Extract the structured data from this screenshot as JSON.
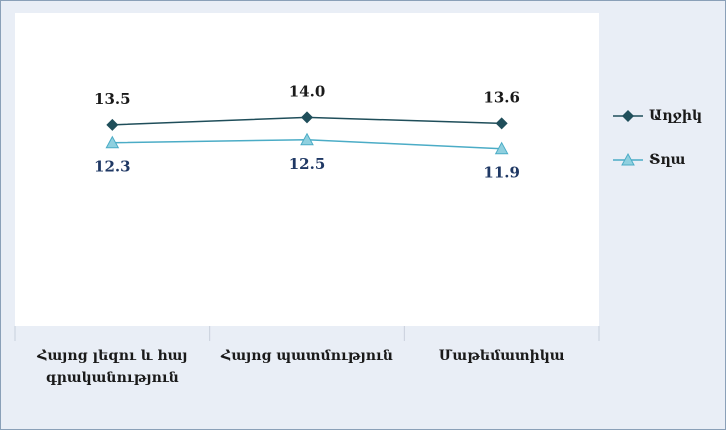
{
  "chart_data": {
    "type": "line",
    "categories": [
      "Հայոց լեզու և հայ գրականություն",
      "Հայոց պատմություն",
      "Մաթեմատիկա"
    ],
    "series": [
      {
        "name": "Աղջիկ",
        "color": "#1f4e5a",
        "marker": "diamond",
        "values": [
          13.5,
          14.0,
          13.6
        ],
        "value_labels": [
          "13.5",
          "14.0",
          "13.6"
        ]
      },
      {
        "name": "Տղա",
        "color": "#4bacc6",
        "marker": "triangle",
        "values": [
          12.3,
          12.5,
          11.9
        ],
        "value_labels": [
          "12.3",
          "12.5",
          "11.9"
        ]
      }
    ],
    "ylim": [
      0,
      20
    ],
    "legend": "right"
  }
}
